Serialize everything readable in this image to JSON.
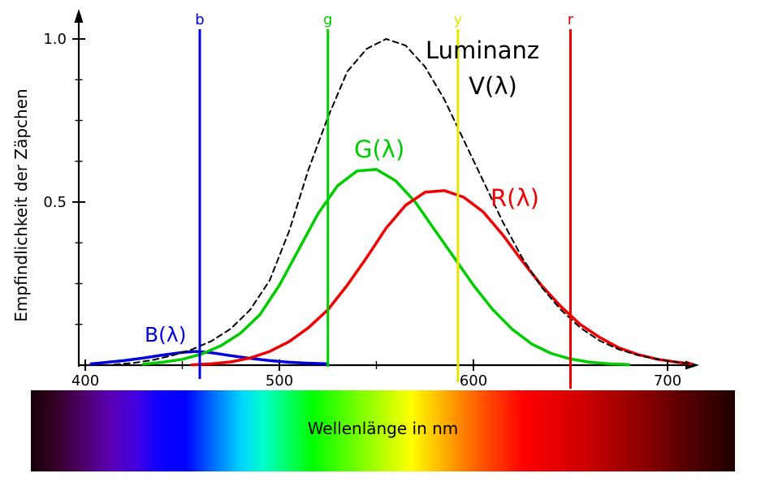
{
  "chart_data": {
    "type": "line",
    "title": "",
    "ylabel": "Empfindlichkeit der Zäpchen",
    "xlabel": "Wellenlänge in nm",
    "xlim": [
      400,
      712
    ],
    "ylim": [
      0,
      1.0
    ],
    "grid": false,
    "legend": "inline curve labels",
    "xticks": [
      400,
      500,
      600,
      700
    ],
    "xticks_minor": [
      450,
      550,
      650
    ],
    "yticks": [
      0.5,
      1.0
    ],
    "ytick_labels": [
      "0.5",
      "1.0"
    ],
    "yticks_minor": [
      0.125,
      0.25,
      0.375,
      0.625,
      0.75,
      0.875
    ],
    "series": [
      {
        "name": "B(λ)",
        "key": "b",
        "color": "#0000dd",
        "style": "solid",
        "points": [
          [
            403,
            0.004
          ],
          [
            410,
            0.008
          ],
          [
            420,
            0.014
          ],
          [
            430,
            0.022
          ],
          [
            440,
            0.031
          ],
          [
            450,
            0.039
          ],
          [
            457,
            0.042
          ],
          [
            465,
            0.038
          ],
          [
            475,
            0.029
          ],
          [
            485,
            0.021
          ],
          [
            495,
            0.014
          ],
          [
            505,
            0.009
          ],
          [
            515,
            0.006
          ],
          [
            525,
            0.004
          ]
        ]
      },
      {
        "name": "G(λ)",
        "key": "g",
        "color": "#00cc00",
        "style": "solid",
        "points": [
          [
            430,
            0.003
          ],
          [
            440,
            0.009
          ],
          [
            450,
            0.018
          ],
          [
            460,
            0.034
          ],
          [
            470,
            0.06
          ],
          [
            480,
            0.098
          ],
          [
            490,
            0.155
          ],
          [
            500,
            0.245
          ],
          [
            510,
            0.355
          ],
          [
            520,
            0.465
          ],
          [
            530,
            0.55
          ],
          [
            540,
            0.595
          ],
          [
            550,
            0.6
          ],
          [
            560,
            0.565
          ],
          [
            570,
            0.5
          ],
          [
            580,
            0.415
          ],
          [
            590,
            0.33
          ],
          [
            600,
            0.245
          ],
          [
            610,
            0.17
          ],
          [
            620,
            0.11
          ],
          [
            630,
            0.065
          ],
          [
            640,
            0.036
          ],
          [
            650,
            0.019
          ],
          [
            660,
            0.009
          ],
          [
            670,
            0.004
          ],
          [
            680,
            0.002
          ]
        ]
      },
      {
        "name": "R(λ)",
        "key": "r",
        "color": "#ee0000",
        "style": "solid",
        "points": [
          [
            455,
            0.001
          ],
          [
            465,
            0.004
          ],
          [
            475,
            0.01
          ],
          [
            485,
            0.022
          ],
          [
            495,
            0.042
          ],
          [
            505,
            0.072
          ],
          [
            515,
            0.115
          ],
          [
            525,
            0.17
          ],
          [
            535,
            0.245
          ],
          [
            545,
            0.33
          ],
          [
            555,
            0.42
          ],
          [
            565,
            0.49
          ],
          [
            575,
            0.53
          ],
          [
            585,
            0.535
          ],
          [
            595,
            0.515
          ],
          [
            605,
            0.47
          ],
          [
            615,
            0.4
          ],
          [
            625,
            0.32
          ],
          [
            635,
            0.245
          ],
          [
            645,
            0.18
          ],
          [
            655,
            0.125
          ],
          [
            665,
            0.085
          ],
          [
            675,
            0.053
          ],
          [
            685,
            0.032
          ],
          [
            695,
            0.018
          ],
          [
            705,
            0.009
          ],
          [
            712,
            0.004
          ]
        ]
      },
      {
        "name": "Luminanz V(λ)",
        "key": "v",
        "color": "#000000",
        "style": "dashed",
        "points": [
          [
            415,
            0.002
          ],
          [
            425,
            0.007
          ],
          [
            435,
            0.016
          ],
          [
            445,
            0.03
          ],
          [
            455,
            0.048
          ],
          [
            465,
            0.074
          ],
          [
            475,
            0.112
          ],
          [
            485,
            0.17
          ],
          [
            495,
            0.26
          ],
          [
            505,
            0.41
          ],
          [
            515,
            0.6
          ],
          [
            525,
            0.76
          ],
          [
            535,
            0.9
          ],
          [
            545,
            0.97
          ],
          [
            555,
            1.0
          ],
          [
            565,
            0.98
          ],
          [
            575,
            0.915
          ],
          [
            585,
            0.815
          ],
          [
            595,
            0.69
          ],
          [
            605,
            0.565
          ],
          [
            615,
            0.44
          ],
          [
            625,
            0.33
          ],
          [
            635,
            0.24
          ],
          [
            645,
            0.17
          ],
          [
            655,
            0.115
          ],
          [
            665,
            0.075
          ],
          [
            675,
            0.048
          ],
          [
            685,
            0.03
          ],
          [
            695,
            0.018
          ],
          [
            705,
            0.009
          ],
          [
            712,
            0.004
          ]
        ]
      }
    ],
    "vlines": [
      {
        "label": "b",
        "x": 459,
        "color": "#0000dd"
      },
      {
        "label": "g",
        "x": 525,
        "color": "#00cc00"
      },
      {
        "label": "y",
        "x": 592,
        "color": "#e6e600"
      },
      {
        "label": "r",
        "x": 650,
        "color": "#ee0000"
      }
    ]
  },
  "labels": {
    "luminanz_1": "Luminanz",
    "luminanz_2": "V(λ)",
    "g": "G(λ)",
    "r": "R(λ)",
    "b": "B(λ)"
  },
  "spectrum_bar": {
    "label": "Wellenlänge in nm",
    "stops": [
      [
        0,
        "#150009"
      ],
      [
        3,
        "#30001f"
      ],
      [
        7,
        "#4b0060"
      ],
      [
        11,
        "#5a00b0"
      ],
      [
        15,
        "#4400e0"
      ],
      [
        18,
        "#1000ff"
      ],
      [
        22,
        "#0000ff"
      ],
      [
        26,
        "#0070ff"
      ],
      [
        30,
        "#00d5ff"
      ],
      [
        33,
        "#00ffcc"
      ],
      [
        40,
        "#00ff00"
      ],
      [
        47,
        "#80ff00"
      ],
      [
        54,
        "#ffff00"
      ],
      [
        59,
        "#ffaa00"
      ],
      [
        64,
        "#ff5500"
      ],
      [
        70,
        "#ff0000"
      ],
      [
        78,
        "#d00000"
      ],
      [
        87,
        "#8b0000"
      ],
      [
        95,
        "#450000"
      ],
      [
        100,
        "#200000"
      ]
    ]
  }
}
